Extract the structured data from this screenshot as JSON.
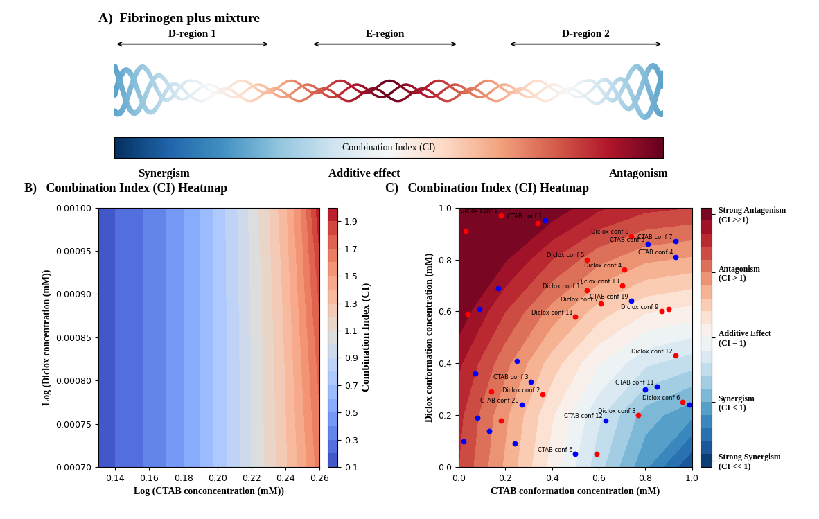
{
  "chart_data": [
    {
      "type": "diagram",
      "title": "A)  Fibrinogen plus mixture",
      "regions": [
        "D-region 1",
        "E-region",
        "D-region 2"
      ],
      "colorbar_label": "Combination Index (CI)",
      "scale_labels": [
        "Synergism",
        "Additive effect",
        "Antagonism"
      ]
    },
    {
      "type": "contour",
      "title": "B)   Combination Index (CI) Heatmap",
      "x_label": "Log (CTAB conconcentration (mM))",
      "y_label": "Log (Diclox concentration (mM))",
      "x": [
        0.13,
        0.15,
        0.17,
        0.19,
        0.21,
        0.22,
        0.23,
        0.24,
        0.25,
        0.26
      ],
      "y": [
        0.0007,
        0.0008,
        0.0009,
        0.001
      ],
      "z": [
        [
          0.15,
          0.25,
          0.4,
          0.6,
          0.85,
          1.0,
          1.13,
          1.28,
          1.45,
          1.65
        ],
        [
          0.15,
          0.25,
          0.4,
          0.6,
          0.85,
          1.0,
          1.14,
          1.3,
          1.5,
          1.72
        ],
        [
          0.15,
          0.25,
          0.4,
          0.6,
          0.86,
          1.01,
          1.16,
          1.33,
          1.56,
          1.82
        ],
        [
          0.15,
          0.25,
          0.4,
          0.6,
          0.87,
          1.03,
          1.19,
          1.38,
          1.62,
          1.98
        ]
      ],
      "xlim": [
        0.13,
        0.26
      ],
      "xticks": [
        0.14,
        0.16,
        0.18,
        {
          "value": 0.2,
          "label": "0.20"
        },
        0.22,
        0.24,
        0.26
      ],
      "ylim": [
        0.0007,
        0.001
      ],
      "yticks": [
        {
          "value": 0.0007,
          "label": "0.00070"
        },
        {
          "value": 0.00075,
          "label": "0.00075"
        },
        {
          "value": 0.0008,
          "label": "0.00080"
        },
        {
          "value": 0.00085,
          "label": "0.00085"
        },
        {
          "value": 0.0009,
          "label": "0.00090"
        },
        {
          "value": 0.00095,
          "label": "0.00095"
        },
        {
          "value": 0.001,
          "label": "0.00100"
        }
      ],
      "colorbar_label": "Combination Index (CI)",
      "zlim": [
        0.1,
        2.0
      ],
      "zticks": [
        0.1,
        0.3,
        0.5,
        0.7,
        0.9,
        1.1,
        1.3,
        1.5,
        1.7,
        1.9
      ]
    },
    {
      "type": "contour_scatter",
      "title": "C)   Combination Index (CI) Heatmap",
      "x_label": "CTAB conformation concentration (mM)",
      "y_label": "Diclox conformation concentration (mM)",
      "x": [
        0.0,
        0.2,
        0.4,
        0.6,
        0.8,
        1.0
      ],
      "y": [
        0.0,
        0.2,
        0.4,
        0.6,
        0.8,
        1.0
      ],
      "z": [
        [
          1.7,
          1.38,
          1.06,
          0.74,
          0.42,
          0.1
        ],
        [
          1.73,
          1.42,
          1.11,
          0.82,
          0.55,
          0.42
        ],
        [
          1.82,
          1.53,
          1.25,
          1.01,
          0.82,
          0.74
        ],
        [
          1.97,
          1.7,
          1.46,
          1.25,
          1.11,
          1.06
        ],
        [
          2.0,
          1.91,
          1.7,
          1.53,
          1.42,
          1.38
        ],
        [
          2.0,
          2.0,
          1.97,
          1.82,
          1.73,
          1.7
        ]
      ],
      "xlim": [
        0.0,
        1.0
      ],
      "xticks": [
        0.0,
        0.2,
        0.4,
        0.6,
        0.8,
        1.0
      ],
      "ylim": [
        0.0,
        1.0
      ],
      "yticks": [
        0.0,
        0.2,
        0.4,
        0.6,
        0.8,
        1.0
      ],
      "zlim": [
        0.0,
        2.0
      ],
      "zticks": [
        {
          "value": 1.95,
          "label": "Strong Antagonism\n(CI >>1)"
        },
        {
          "value": 1.5,
          "label": "Antagonism\n(CI > 1)"
        },
        {
          "value": 1.0,
          "label": "Additive Effect\n(CI = 1)"
        },
        {
          "value": 0.5,
          "label": "Synergism\n(CI < 1)"
        },
        {
          "value": 0.05,
          "label": "Strong Synergism\n(CI << 1)"
        }
      ],
      "series": [
        {
          "color": "red",
          "x": [
            0.18,
            0.34,
            0.03,
            0.74,
            0.55,
            0.71,
            0.7,
            0.55,
            0.61,
            0.5,
            0.87,
            0.9,
            0.04,
            0.93,
            0.36,
            0.14,
            0.18,
            0.77,
            0.96,
            0.59
          ],
          "values": [
            0.97,
            0.94,
            0.91,
            0.89,
            0.8,
            0.76,
            0.7,
            0.68,
            0.63,
            0.58,
            0.6,
            0.61,
            0.59,
            0.43,
            0.28,
            0.29,
            0.18,
            0.2,
            0.25,
            0.05
          ],
          "point_labels": [
            "Diclox conf 1",
            null,
            null,
            "Diclox conf 8",
            "Diclox conf 5",
            "Diclox conf 4",
            "Diclox conf 13",
            "Diclox conf 10",
            "Diclox conf 7",
            "Diclox conf 11",
            "Diclox conf 9",
            null,
            null,
            "Diclox conf 12",
            "Diclox conf 2",
            null,
            null,
            "Diclox conf 3",
            "Diclox conf 6",
            null
          ]
        },
        {
          "color": "blue",
          "x": [
            0.37,
            0.93,
            0.81,
            0.93,
            0.17,
            0.74,
            0.09,
            0.25,
            0.07,
            0.31,
            0.85,
            0.8,
            0.27,
            0.08,
            0.13,
            0.63,
            0.99,
            0.02,
            0.24,
            0.5
          ],
          "values": [
            0.95,
            0.87,
            0.86,
            0.81,
            0.69,
            0.64,
            0.61,
            0.41,
            0.36,
            0.33,
            0.31,
            0.3,
            0.24,
            0.19,
            0.14,
            0.18,
            0.24,
            0.1,
            0.09,
            0.05
          ],
          "point_labels": [
            "CTAB conf 1",
            "CTAB conf 7",
            "CTAB conf 5",
            "CTAB conf 4",
            null,
            "CTAB conf 19",
            null,
            null,
            null,
            "CTAB conf 3",
            "CTAB conf 11",
            null,
            "CTAB conf 20",
            null,
            null,
            "CTAB conf 12",
            null,
            null,
            null,
            "CTAB conf 6"
          ]
        }
      ]
    }
  ]
}
